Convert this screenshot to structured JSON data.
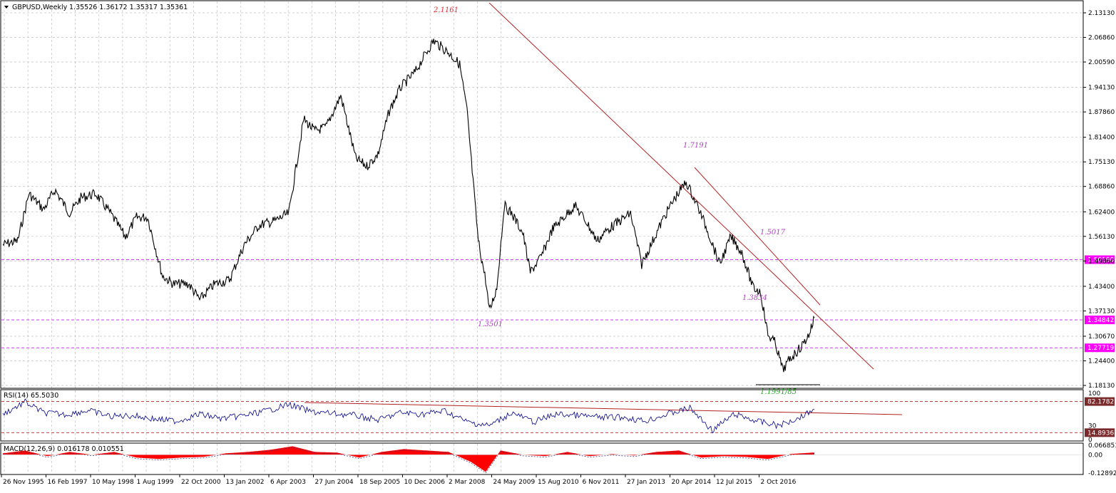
{
  "header": {
    "symbol_label": "GBPUSD,Weekly",
    "ohlc_label": "1.35526 1.36172 1.35317 1.35361"
  },
  "colors": {
    "background": "#ffffff",
    "price_line": "#000000",
    "grid": "#c0c0c0",
    "trend_line": "#b22222",
    "level_line": "#cc33ff",
    "price_tag_magenta": "#ff00ff",
    "price_tag_dark": "#7a2a2a",
    "rsi_line": "#00008b",
    "rsi_level": "#b22222",
    "macd_hist": "#ff0000",
    "macd_signal": "#404080",
    "annotation_red": "#e0303a",
    "annotation_purple": "#b040c0",
    "annotation_green": "#22aa22"
  },
  "chart_data": [
    {
      "type": "line",
      "panel": "main",
      "title": "GBPUSD,Weekly",
      "ylim": [
        1.1813,
        2.1313
      ],
      "y_ticks": [
        "2.13130",
        "2.06860",
        "2.00590",
        "1.94130",
        "1.87860",
        "1.81400",
        "1.75130",
        "1.68860",
        "1.62400",
        "1.56130",
        "1.49860",
        "1.43400",
        "1.37130",
        "1.30670",
        "1.24400",
        "1.18130"
      ],
      "x_tick_labels": [
        "26 Nov 1995",
        "16 Feb 1997",
        "10 May 1998",
        "1 Aug 1999",
        "22 Oct 2000",
        "13 Jan 2002",
        "6 Apr 2003",
        "27 Jun 2004",
        "18 Sep 2005",
        "10 Dec 2006",
        "2 Mar 2008",
        "24 May 2009",
        "15 Aug 2010",
        "6 Nov 2011",
        "27 Jan 2013",
        "20 Apr 2014",
        "12 Jul 2015",
        "2 Oct 2016"
      ],
      "grid": true,
      "series": [
        {
          "x": [
            1995.9,
            1996.3,
            1996.6,
            1997.0,
            1997.3,
            1997.7,
            1998.0,
            1998.4,
            1998.8,
            1999.2,
            1999.5,
            1999.8,
            2000.2,
            2000.5,
            2000.9,
            2001.2,
            2001.6,
            2002.0,
            2002.4,
            2002.8,
            2003.2,
            2003.6,
            2004.0,
            2004.3,
            2004.6,
            2005.0,
            2005.4,
            2005.7,
            2006.0,
            2006.3,
            2006.6,
            2007.0,
            2007.3,
            2007.5,
            2007.9,
            2008.2,
            2008.4,
            2008.7,
            2008.9,
            2009.0,
            2009.2,
            2009.4,
            2009.6,
            2009.9,
            2010.1,
            2010.4,
            2010.7,
            2011.0,
            2011.3,
            2011.6,
            2011.9,
            2012.2,
            2012.5,
            2012.8,
            2013.1,
            2013.4,
            2013.7,
            2014.0,
            2014.3,
            2014.6,
            2014.9,
            2015.2,
            2015.5,
            2015.8,
            2016.1,
            2016.3,
            2016.5,
            2016.7,
            2016.9,
            2017.1,
            2017.4,
            2017.6,
            2017.75
          ],
          "y": [
            1.54,
            1.55,
            1.67,
            1.63,
            1.68,
            1.62,
            1.66,
            1.67,
            1.62,
            1.56,
            1.61,
            1.61,
            1.46,
            1.44,
            1.44,
            1.4,
            1.44,
            1.45,
            1.54,
            1.59,
            1.6,
            1.62,
            1.86,
            1.83,
            1.84,
            1.92,
            1.76,
            1.74,
            1.77,
            1.88,
            1.94,
            1.98,
            2.03,
            2.06,
            2.03,
            2.0,
            1.88,
            1.55,
            1.45,
            1.37,
            1.43,
            1.64,
            1.62,
            1.57,
            1.47,
            1.51,
            1.58,
            1.61,
            1.64,
            1.6,
            1.55,
            1.58,
            1.6,
            1.62,
            1.49,
            1.55,
            1.61,
            1.66,
            1.7,
            1.64,
            1.57,
            1.49,
            1.56,
            1.52,
            1.43,
            1.42,
            1.31,
            1.29,
            1.22,
            1.25,
            1.28,
            1.31,
            1.3536
          ]
        }
      ],
      "annotations": [
        {
          "text": "2.1161",
          "x": 2007.75,
          "y": 2.1161
        },
        {
          "text": "1.3501",
          "x": 2009.15,
          "y": 1.3501
        },
        {
          "text": "1.7191",
          "x": 2014.4,
          "y": 1.7191
        },
        {
          "text": "1.5017",
          "x": 2016.0,
          "y": 1.5017
        },
        {
          "text": "1.3834",
          "x": 2016.1,
          "y": 1.3834
        },
        {
          "text": "1.1991/85",
          "x": 2016.9,
          "y": 1.1991
        }
      ],
      "horizontal_levels": [
        1.5019,
        1.34842,
        1.27719
      ],
      "level_tags": [
        "1.50190",
        "1.34842",
        "1.27719"
      ]
    },
    {
      "type": "line",
      "panel": "rsi",
      "title": "RSI(14) 65.5030",
      "ylim": [
        0,
        100
      ],
      "y_ticks": [
        "100",
        "30",
        "0"
      ],
      "levels": [
        82.1782,
        14.8936
      ],
      "level_tags": [
        "82.1782",
        "14.8936"
      ],
      "series": [
        {
          "x": [
            1995.9,
            1996.5,
            1997.0,
            1997.6,
            1998.2,
            1998.8,
            1999.4,
            2000.0,
            2000.6,
            2001.2,
            2001.8,
            2002.4,
            2003.0,
            2003.6,
            2004.2,
            2004.8,
            2005.4,
            2006.0,
            2006.6,
            2007.2,
            2007.8,
            2008.4,
            2009.0,
            2009.6,
            2010.2,
            2010.8,
            2011.4,
            2012.0,
            2012.6,
            2013.2,
            2013.8,
            2014.4,
            2015.0,
            2015.6,
            2016.2,
            2016.8,
            2017.4,
            2017.75
          ],
          "y": [
            55,
            81,
            58,
            54,
            63,
            50,
            52,
            44,
            40,
            55,
            45,
            52,
            62,
            76,
            60,
            56,
            52,
            42,
            58,
            55,
            62,
            38,
            30,
            58,
            38,
            55,
            52,
            48,
            48,
            40,
            55,
            68,
            20,
            55,
            40,
            30,
            50,
            65.5
          ]
        }
      ]
    },
    {
      "type": "bar",
      "panel": "macd",
      "title": "MACD(12,26,9) 0.016178 0.010551",
      "y_ticks": [
        "0.066851",
        "0.00",
        "-0.128921"
      ],
      "ylim": [
        -0.128921,
        0.066851
      ],
      "series": [
        {
          "name": "histogram",
          "x": [
            1995.9,
            1996.5,
            1997.1,
            1997.7,
            1998.3,
            1998.9,
            1999.5,
            2000.1,
            2000.7,
            2001.3,
            2001.9,
            2002.5,
            2003.1,
            2003.7,
            2004.3,
            2004.9,
            2005.5,
            2006.1,
            2006.7,
            2007.3,
            2007.9,
            2008.5,
            2008.9,
            2009.3,
            2009.9,
            2010.5,
            2011.1,
            2011.7,
            2012.3,
            2012.9,
            2013.5,
            2014.1,
            2014.7,
            2015.3,
            2015.9,
            2016.5,
            2017.1,
            2017.75
          ],
          "y": [
            0.01,
            0.03,
            -0.01,
            0.02,
            0.0,
            0.02,
            -0.02,
            -0.03,
            -0.02,
            -0.015,
            0.01,
            0.02,
            0.035,
            0.06,
            0.02,
            0.015,
            -0.02,
            0.02,
            0.04,
            0.03,
            0.02,
            -0.05,
            -0.12,
            0.03,
            0.0,
            -0.01,
            0.02,
            -0.01,
            0.005,
            -0.005,
            0.02,
            0.03,
            -0.02,
            -0.01,
            -0.015,
            -0.03,
            0.005,
            0.0162
          ]
        }
      ]
    }
  ]
}
